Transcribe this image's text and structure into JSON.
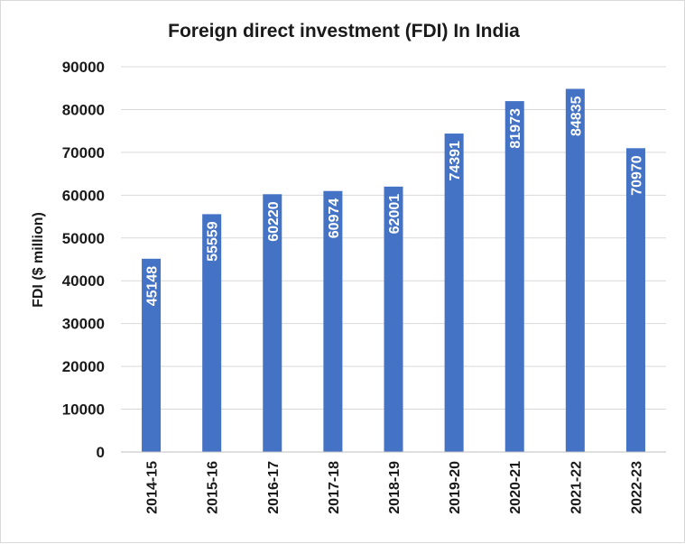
{
  "chart_data": {
    "type": "bar",
    "title": "Foreign direct investment (FDI) In India",
    "xlabel": "",
    "ylabel": "FDI ($ million)",
    "categories": [
      "2014-15",
      "2015-16",
      "2016-17",
      "2017-18",
      "2018-19",
      "2019-20",
      "2020-21",
      "2021-22",
      "2022-23"
    ],
    "values": [
      45148,
      55559,
      60220,
      60974,
      62001,
      74391,
      81973,
      84835,
      70970
    ],
    "data_labels": [
      "45148",
      "55559",
      "60220",
      "60974",
      "62001",
      "74391",
      "81973",
      "84835",
      "70970"
    ],
    "yticks": [
      "0",
      "10000",
      "20000",
      "30000",
      "40000",
      "50000",
      "60000",
      "70000",
      "80000",
      "90000"
    ],
    "ylim": [
      0,
      90000
    ],
    "grid": true,
    "legend": false,
    "bar_color": "#4472C4"
  }
}
